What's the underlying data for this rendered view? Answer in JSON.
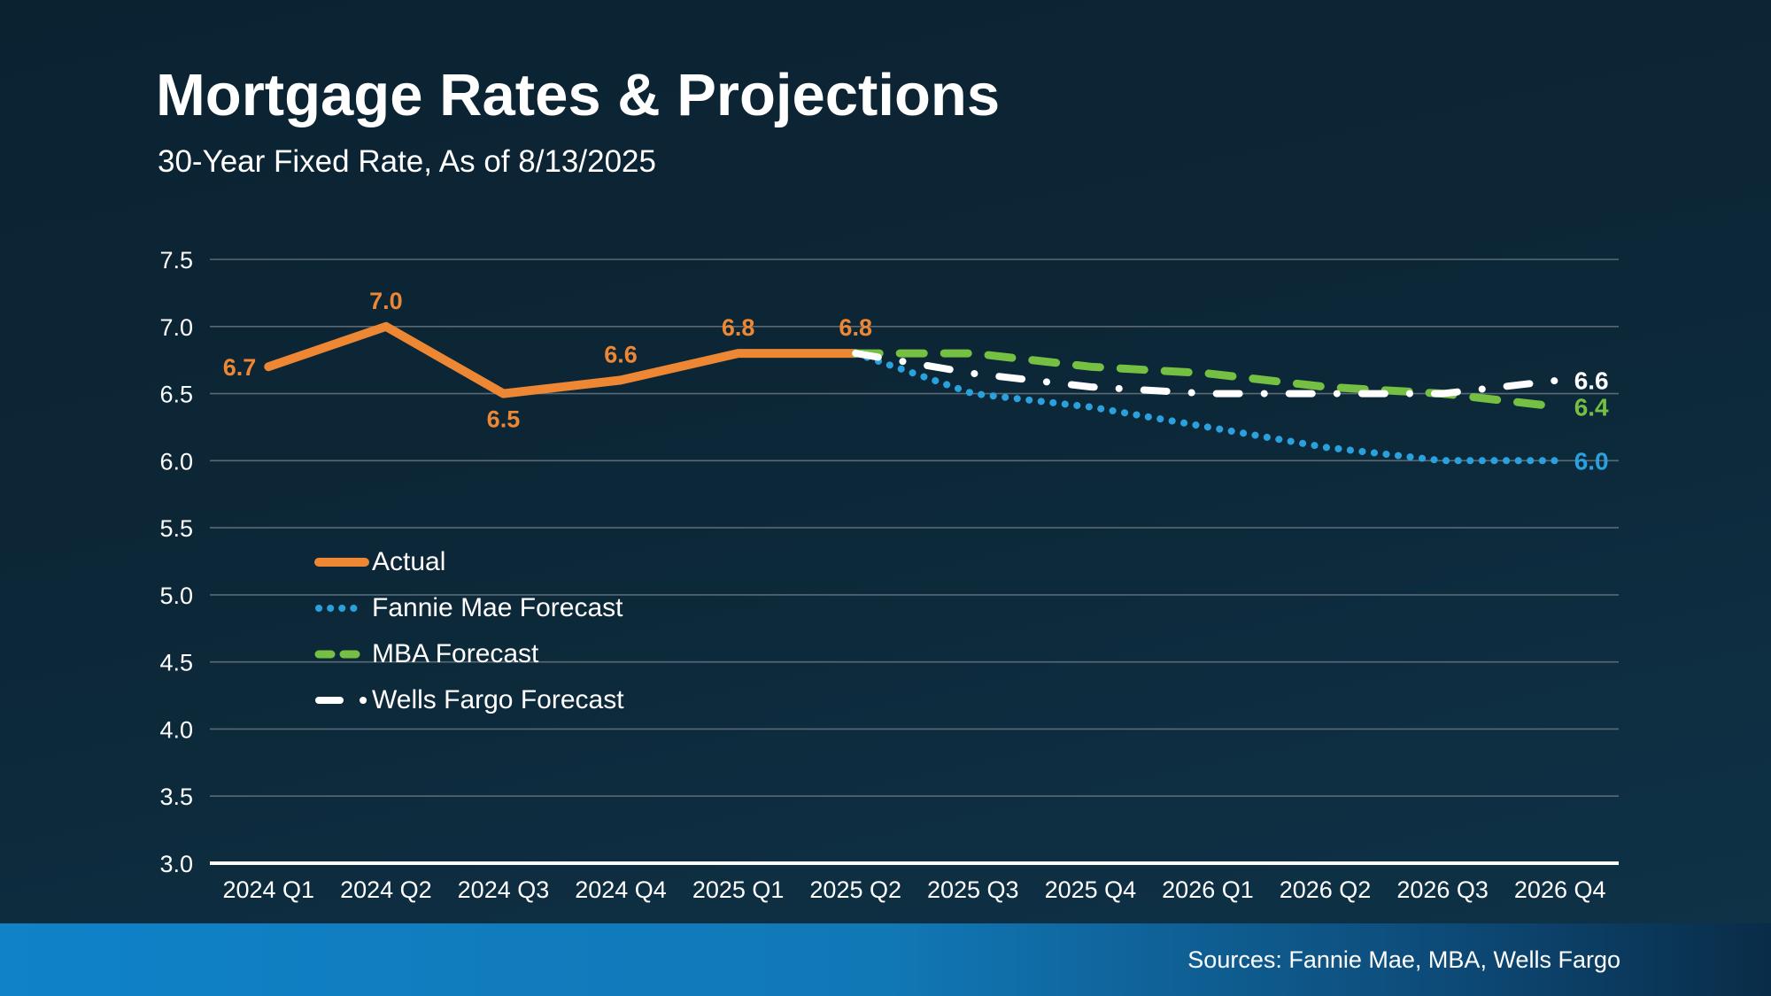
{
  "header": {
    "title": "Mortgage Rates & Projections",
    "subtitle": "30-Year Fixed Rate, As of 8/13/2025"
  },
  "footer": {
    "sources": "Sources: Fannie Mae, MBA, Wells Fargo"
  },
  "colors": {
    "background_top": "#0b2231",
    "background_bottom": "#0f3349",
    "gridline": "#5a6974",
    "axis_line": "#ffffff",
    "text": "#ffffff",
    "actual_orange": "#ed8733",
    "fannie_blue": "#2aa0dc",
    "mba_green": "#75c043",
    "wells_white": "#ffffff",
    "footer_bar_left": "#0f82c8",
    "footer_bar_right": "#092c48"
  },
  "chart_data": {
    "type": "line",
    "title": "Mortgage Rates & Projections",
    "subtitle": "30-Year Fixed Rate, As of 8/13/2025",
    "categories": [
      "2024 Q1",
      "2024 Q2",
      "2024 Q3",
      "2024 Q4",
      "2025 Q1",
      "2025 Q2",
      "2025 Q3",
      "2025 Q4",
      "2026 Q1",
      "2026 Q2",
      "2026 Q3",
      "2026 Q4"
    ],
    "ylim": [
      3.0,
      7.5
    ],
    "ytick_step": 0.5,
    "grid": true,
    "legend_position": "middle-left",
    "series": [
      {
        "name": "Actual",
        "color": "#ed8733",
        "style": "solid",
        "start_index": 0,
        "values": [
          6.7,
          7.0,
          6.5,
          6.6,
          6.8,
          6.8
        ],
        "point_labels": [
          "6.7",
          "7.0",
          "6.5",
          "6.6",
          "6.8",
          "6.8"
        ],
        "label_placement": [
          "left",
          "above",
          "below",
          "above",
          "above",
          "above"
        ]
      },
      {
        "name": "Fannie Mae Forecast",
        "color": "#2aa0dc",
        "style": "dotted",
        "start_index": 5,
        "values": [
          6.8,
          6.5,
          6.4,
          6.25,
          6.1,
          6.0,
          6.0
        ],
        "end_label": "6.0"
      },
      {
        "name": "MBA Forecast",
        "color": "#75c043",
        "style": "dashed",
        "start_index": 5,
        "values": [
          6.8,
          6.8,
          6.7,
          6.65,
          6.55,
          6.5,
          6.4
        ],
        "end_label": "6.4"
      },
      {
        "name": "Wells Fargo Forecast",
        "color": "#ffffff",
        "style": "dashdot",
        "start_index": 5,
        "values": [
          6.8,
          6.65,
          6.55,
          6.5,
          6.5,
          6.5,
          6.6
        ],
        "end_label": "6.6"
      }
    ]
  }
}
